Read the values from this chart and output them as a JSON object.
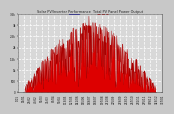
{
  "title": "Solar PV/Inverter Performance  Total PV Panel Power Output",
  "title_color": "#222222",
  "legend_label1": "Instantaneous Watts",
  "legend_label2": "Average Watts",
  "legend_color1": "#0000cc",
  "legend_color2": "#cc0000",
  "bg_color": "#c8c8c8",
  "plot_bg_color": "#d8d8d8",
  "area_color": "#dd0000",
  "grid_color": "#ffffff",
  "ymax": 3500,
  "ymin": 0,
  "num_points": 500,
  "seed": 17
}
